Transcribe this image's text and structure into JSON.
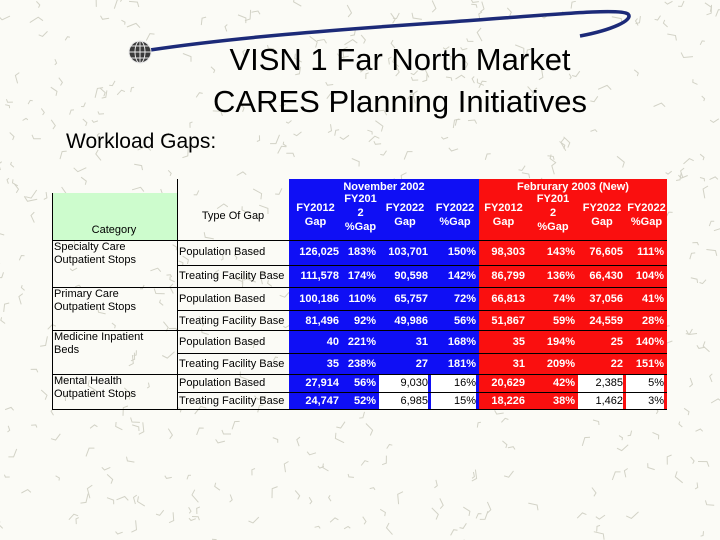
{
  "slide": {
    "title_line1": "VISN 1 Far North Market",
    "title_line2": "CARES Planning Initiatives",
    "subtitle": "Workload Gaps:"
  },
  "colors": {
    "category_bg": "#cdfccd",
    "blue_bg": "#0f0ff5",
    "red_bg": "#fa0f0f",
    "blue_text": "#ffffff",
    "red_text": "#ffffff",
    "deco_navy": "#1c2a78"
  },
  "icons": [
    "globe-icon",
    "swoosh-line"
  ],
  "table": {
    "header": {
      "category": "Category",
      "type_of_gap": "Type Of Gap",
      "group_blue": "November 2002",
      "group_red": "Februrary 2003 (New)",
      "cols": [
        [
          "FY2012",
          "Gap"
        ],
        [
          "FY201",
          "2",
          "%Gap"
        ],
        [
          "FY2022",
          "Gap"
        ],
        [
          "FY2022",
          "%Gap"
        ],
        [
          "FY2012",
          "Gap"
        ],
        [
          "FY201",
          "2",
          "%Gap"
        ],
        [
          "FY2022",
          "Gap"
        ],
        [
          "FY2022",
          "%Gap"
        ]
      ]
    },
    "groups": [
      {
        "category": [
          "Specialty Care",
          "Outpatient Stops"
        ],
        "rows": [
          {
            "type": "Population Based",
            "values": [
              "126,025",
              "183%",
              "103,701",
              "150%",
              "98,303",
              "143%",
              "76,605",
              "111%"
            ]
          },
          {
            "type": "Treating Facility Base",
            "values": [
              "111,578",
              "174%",
              "90,598",
              "142%",
              "86,799",
              "136%",
              "66,430",
              "104%"
            ]
          }
        ]
      },
      {
        "category": [
          "Primary Care",
          "Outpatient Stops"
        ],
        "rows": [
          {
            "type": "Population Based",
            "values": [
              "100,186",
              "110%",
              "65,757",
              "72%",
              "66,813",
              "74%",
              "37,056",
              "41%"
            ]
          },
          {
            "type": "Treating Facility Base",
            "values": [
              "81,496",
              "92%",
              "49,986",
              "56%",
              "51,867",
              "59%",
              "24,559",
              "28%"
            ]
          }
        ]
      },
      {
        "category": [
          "Medicine Inpatient",
          "Beds"
        ],
        "rows": [
          {
            "type": "Population Based",
            "values": [
              "40",
              "221%",
              "31",
              "168%",
              "35",
              "194%",
              "25",
              "140%"
            ]
          },
          {
            "type": "Treating Facility Base",
            "values": [
              "35",
              "238%",
              "27",
              "181%",
              "31",
              "209%",
              "22",
              "151%"
            ]
          }
        ]
      },
      {
        "category": [
          "Mental Health",
          "Outpatient Stops"
        ],
        "rows": [
          {
            "type": "Population Based",
            "values": [
              "27,914",
              "56%",
              "9,030",
              "16%",
              "20,629",
              "42%",
              "2,385",
              "5%"
            ]
          },
          {
            "type": "Treating Facility Base",
            "values": [
              "24,747",
              "52%",
              "6,985",
              "15%",
              "18,226",
              "38%",
              "1,462",
              "3%"
            ]
          }
        ]
      }
    ]
  }
}
